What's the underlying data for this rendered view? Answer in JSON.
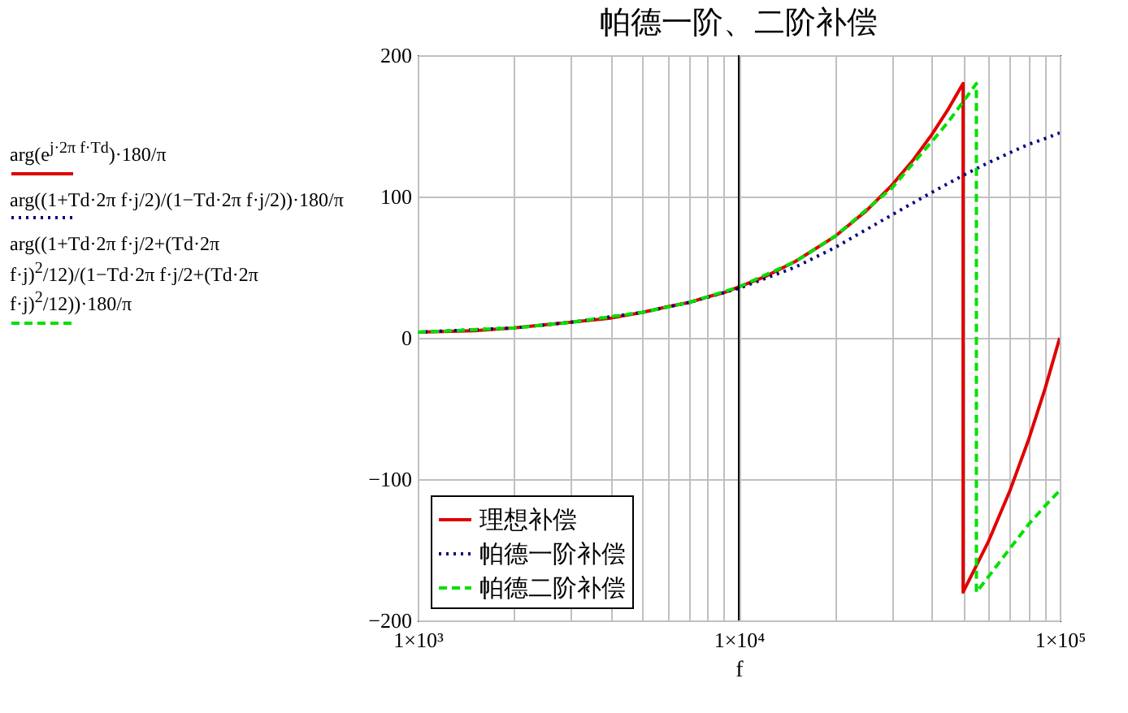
{
  "chart_data": {
    "type": "line",
    "title": "帕德一阶、二阶补偿",
    "xlabel": "f",
    "log": "x",
    "grid": true,
    "legend": "bottom left",
    "xlim": [
      1000,
      100000
    ],
    "ylim": [
      -200,
      200
    ],
    "xticks": [
      {
        "value": 1000,
        "label": "1×10³"
      },
      {
        "value": 2000,
        "label": null
      },
      {
        "value": 3000,
        "label": null
      },
      {
        "value": 4000,
        "label": null
      },
      {
        "value": 5000,
        "label": null
      },
      {
        "value": 6000,
        "label": null
      },
      {
        "value": 7000,
        "label": null
      },
      {
        "value": 8000,
        "label": null
      },
      {
        "value": 9000,
        "label": null
      },
      {
        "value": 10000,
        "label": "1×10⁴"
      },
      {
        "value": 20000,
        "label": null
      },
      {
        "value": 30000,
        "label": null
      },
      {
        "value": 40000,
        "label": null
      },
      {
        "value": 50000,
        "label": null
      },
      {
        "value": 60000,
        "label": null
      },
      {
        "value": 70000,
        "label": null
      },
      {
        "value": 80000,
        "label": null
      },
      {
        "value": 90000,
        "label": null
      },
      {
        "value": 100000,
        "label": "1×10⁵"
      }
    ],
    "yticks": [
      -200,
      -100,
      0,
      100,
      200
    ],
    "ref_lines": [
      {
        "axis": "x",
        "value": 10000,
        "color": "#000000"
      }
    ],
    "annotations": [
      "arg(e$^{j·2π f·Td}$)·180/π",
      "arg((1+Td·2π f·j/2)/(1−Td·2π f·j/2))·180/π",
      "arg((1+Td·2π f·j/2+(Td·2π f·j)$^{2}$/12)/(1−Td·2π f·j/2+(Td·2π f·j)$^{2}$/12))·180/π"
    ],
    "series": [
      {
        "name": "理想补偿",
        "color": "#e00000",
        "line_style": "solid",
        "x": [
          1000,
          1500,
          2000,
          3000,
          4000,
          5000,
          6000,
          7000,
          8000,
          9000,
          10000,
          12000,
          15000,
          20000,
          25000,
          30000,
          35000,
          40000,
          45000,
          50000,
          50000,
          60000,
          70000,
          80000,
          90000,
          100000
        ],
        "values": [
          4,
          5,
          7,
          11,
          14,
          18,
          22,
          25,
          29,
          32,
          36,
          43,
          54,
          72,
          90,
          108,
          126,
          144,
          162,
          180,
          -180,
          -144,
          -108,
          -72,
          -36,
          0
        ]
      },
      {
        "name": "帕德一阶补偿",
        "color": "#000080",
        "line_style": "dotted",
        "x": [
          1000,
          2000,
          3000,
          5000,
          7000,
          10000,
          15000,
          20000,
          30000,
          40000,
          50000,
          60000,
          70000,
          80000,
          90000,
          100000
        ],
        "values": [
          4,
          7,
          11,
          18,
          25,
          35,
          50,
          64,
          87,
          103,
          115,
          124,
          131,
          137,
          141,
          145
        ]
      },
      {
        "name": "帕德二阶补偿",
        "color": "#00e000",
        "line_style": "dashed",
        "x": [
          1000,
          2000,
          3000,
          5000,
          7000,
          10000,
          15000,
          20000,
          30000,
          40000,
          45000,
          50000,
          55000,
          55000,
          60000,
          70000,
          80000,
          90000,
          100000
        ],
        "values": [
          4,
          7,
          11,
          18,
          25,
          36,
          54,
          72,
          106,
          139,
          153,
          167,
          180,
          -180,
          -169,
          -149,
          -132,
          -119,
          -108
        ]
      }
    ]
  }
}
